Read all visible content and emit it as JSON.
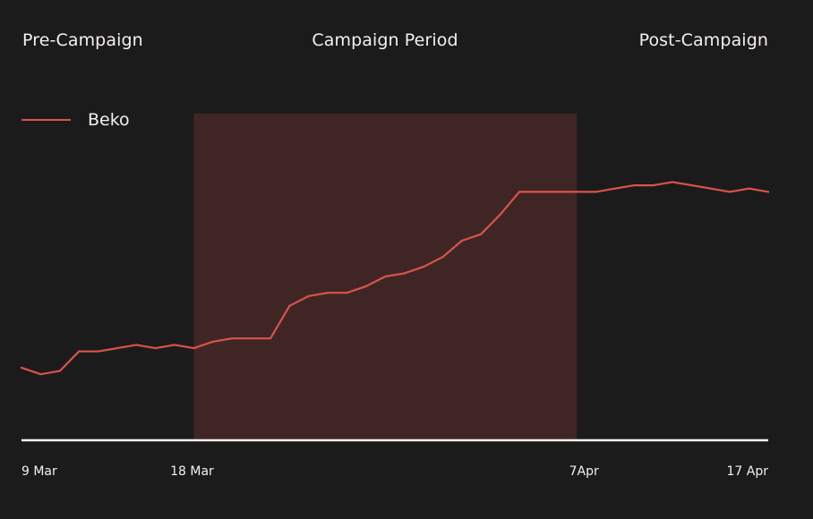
{
  "colors": {
    "background": "#1c1b1b",
    "text": "#f3f0ee",
    "line": "#d9534a",
    "campaign_band": "#3f2625",
    "axis": "#f3f0ee"
  },
  "period_labels": {
    "pre": "Pre-Campaign",
    "campaign": "Campaign Period",
    "post": "Post-Campaign"
  },
  "chart_data": {
    "type": "line",
    "title": "",
    "xlabel": "",
    "ylabel": "",
    "grid": false,
    "legend": "top-left",
    "x_ticks": [
      {
        "day": 0,
        "label": "9 Mar"
      },
      {
        "day": 9,
        "label": "18 Mar"
      },
      {
        "day": 29,
        "label": "7Apr"
      },
      {
        "day": 39,
        "label": "17 Apr"
      }
    ],
    "campaign_range": [
      9,
      29
    ],
    "ylim": [
      0,
      100
    ],
    "series": [
      {
        "name": "Beko",
        "x": [
          0,
          1,
          2,
          3,
          4,
          5,
          6,
          7,
          8,
          9,
          10,
          11,
          12,
          13,
          14,
          15,
          16,
          17,
          18,
          19,
          20,
          21,
          22,
          23,
          24,
          25,
          26,
          27,
          28,
          29,
          30,
          31,
          32,
          33,
          34,
          35,
          36,
          37,
          38,
          39
        ],
        "y": [
          22,
          20,
          21,
          27,
          27,
          28,
          29,
          28,
          29,
          28,
          30,
          31,
          31,
          31,
          41,
          44,
          45,
          45,
          47,
          50,
          51,
          53,
          56,
          61,
          63,
          69,
          76,
          76,
          76,
          76,
          76,
          77,
          78,
          78,
          79,
          78,
          77,
          76,
          77,
          76
        ]
      }
    ]
  }
}
